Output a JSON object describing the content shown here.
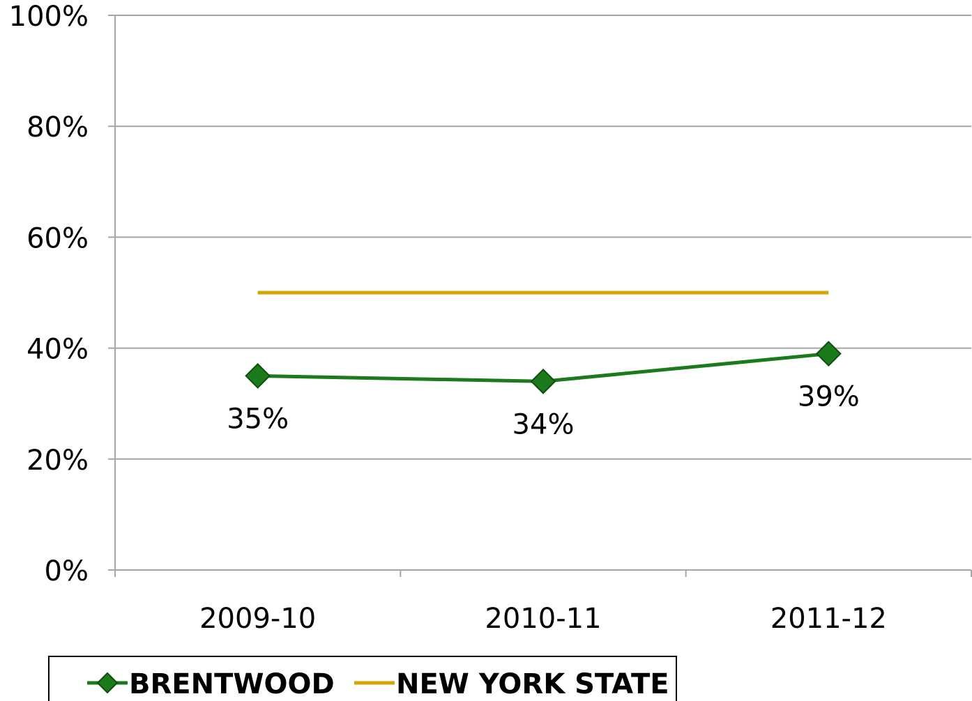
{
  "chart_data": {
    "type": "line",
    "categories": [
      "2009-10",
      "2010-11",
      "2011-12"
    ],
    "series": [
      {
        "name": "BRENTWOOD",
        "color": "#1b7a1b",
        "values": [
          35,
          34,
          39
        ],
        "value_labels": [
          "35%",
          "34%",
          "39%"
        ],
        "marker": "diamond"
      },
      {
        "name": "NEW YORK STATE",
        "color": "#d4a600",
        "values": [
          50,
          50,
          50
        ]
      }
    ],
    "ylim": [
      0,
      100
    ],
    "yticks": [
      {
        "value": 0,
        "label": "0%"
      },
      {
        "value": 20,
        "label": "20%"
      },
      {
        "value": 40,
        "label": "40%"
      },
      {
        "value": 60,
        "label": "60%"
      },
      {
        "value": 80,
        "label": "80%"
      },
      {
        "value": 100,
        "label": "100%"
      }
    ],
    "grid": true,
    "legend": "bottom"
  }
}
